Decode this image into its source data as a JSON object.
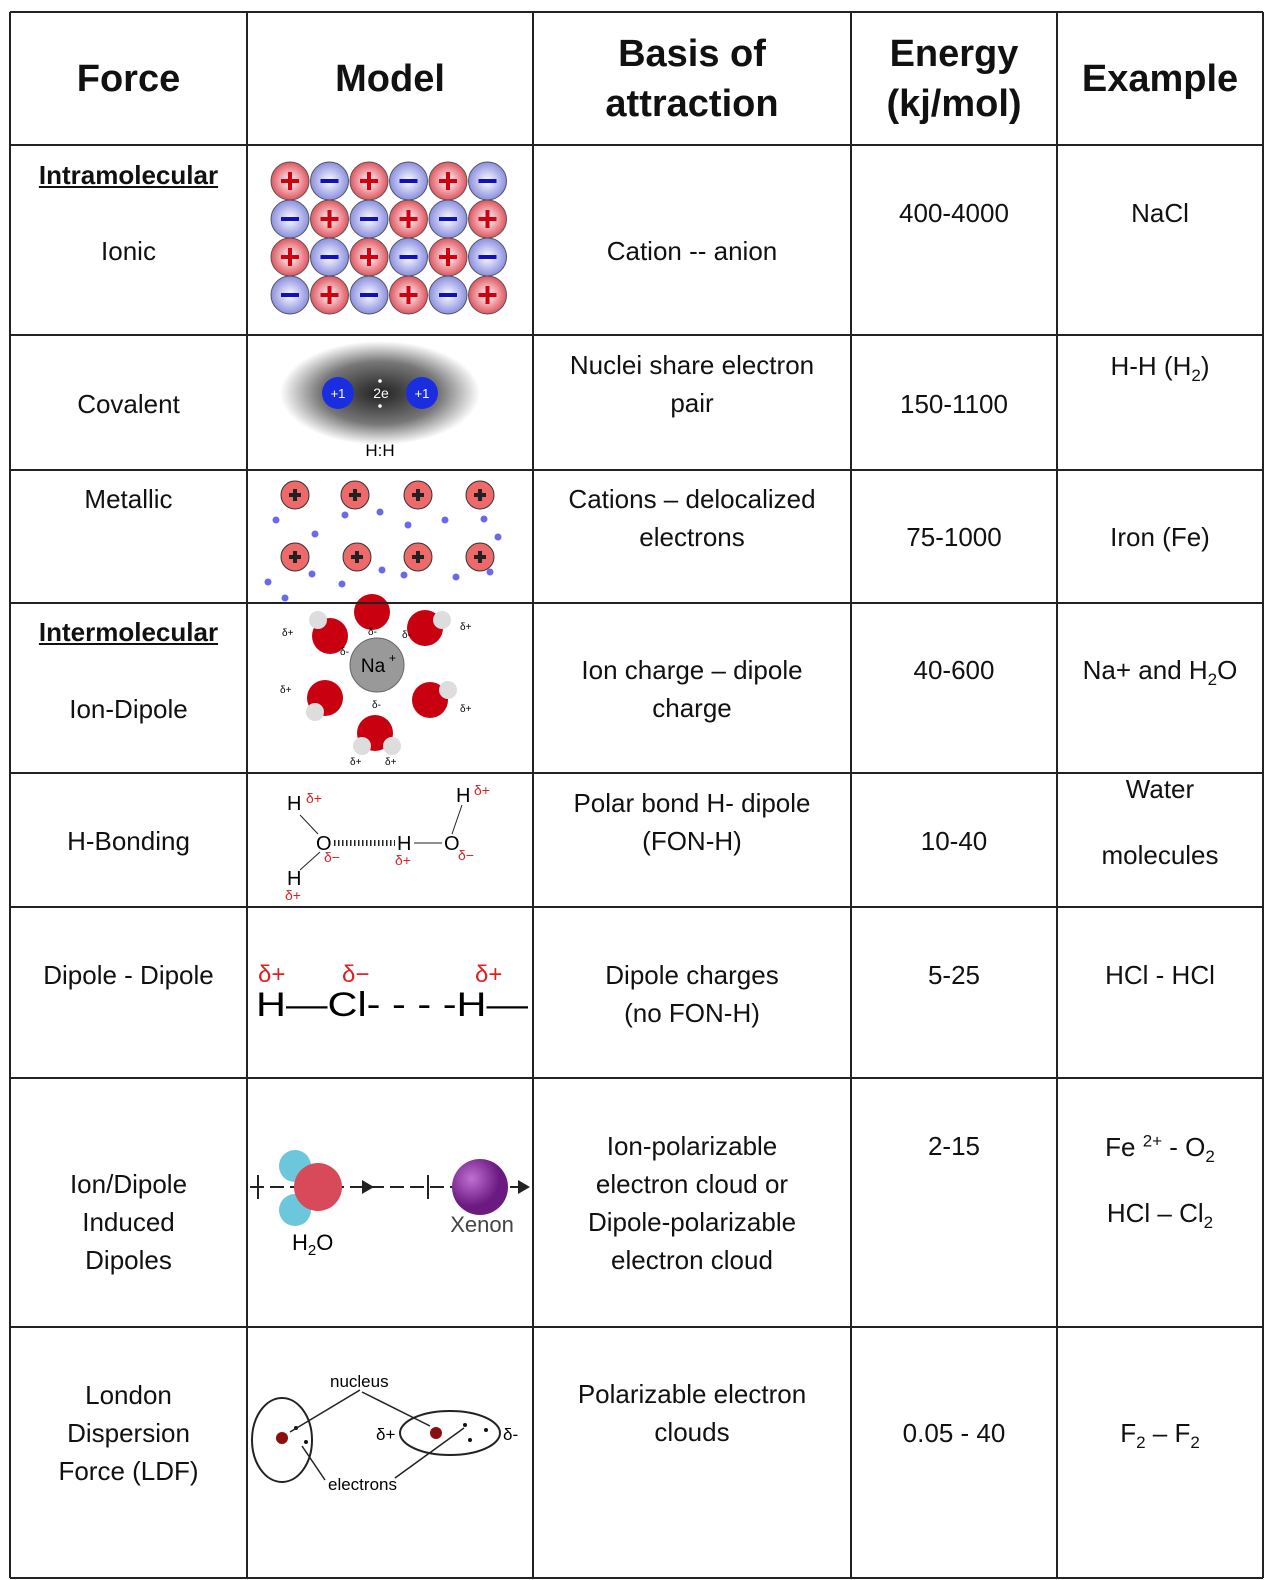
{
  "table": {
    "headers": [
      [
        "Force"
      ],
      [
        "Model"
      ],
      [
        "Basis of",
        "attraction"
      ],
      [
        "Energy",
        "(kj/mol)"
      ],
      [
        "Example"
      ]
    ],
    "rows": [
      {
        "section": "Intramolecular",
        "force": [
          "Ionic"
        ],
        "basis": [
          "Cation -- anion"
        ],
        "energy": "400-4000",
        "example": [
          [
            {
              "text": "NaCl"
            }
          ]
        ]
      },
      {
        "force": [
          "Covalent"
        ],
        "basis": [
          "Nuclei share electron",
          "pair"
        ],
        "energy": "150-1100",
        "example": [
          [
            {
              "text": "H-H (H"
            },
            {
              "text": "2",
              "sub": true
            },
            {
              "text": ")"
            }
          ]
        ],
        "model": {
          "labels": [
            "+1",
            "2e",
            "H:H"
          ]
        }
      },
      {
        "force": [
          "Metallic"
        ],
        "basis": [
          "Cations – delocalized",
          "electrons"
        ],
        "energy": "75-1000",
        "example": [
          [
            {
              "text": "Iron (Fe)"
            }
          ]
        ]
      },
      {
        "section": "Intermolecular",
        "force": [
          "Ion-Dipole"
        ],
        "basis": [
          "Ion charge – dipole",
          "charge"
        ],
        "energy": "40-600",
        "example": [
          [
            {
              "text": "Na+ and H"
            },
            {
              "text": "2",
              "sub": true
            },
            {
              "text": "O"
            }
          ]
        ],
        "model": {
          "labels": [
            "Na",
            "+",
            "δ+",
            "δ-"
          ]
        }
      },
      {
        "force": [
          "H-Bonding"
        ],
        "basis": [
          "Polar bond H- dipole",
          "(FON-H)"
        ],
        "energy": "10-40",
        "example": [
          [
            {
              "text": "Water"
            }
          ],
          [
            {
              "text": "molecules"
            }
          ]
        ],
        "model": {
          "labels": [
            "H",
            "O",
            "δ+",
            "δ−"
          ]
        }
      },
      {
        "force": [
          "Dipole - Dipole"
        ],
        "basis": [
          "Dipole charges",
          "(no FON-H)"
        ],
        "energy": "5-25",
        "example": [
          [
            {
              "text": "HCl - HCl"
            }
          ]
        ],
        "model": {
          "labels": [
            "δ+",
            "δ−",
            "H—Cl- - - -H—"
          ]
        }
      },
      {
        "force": [
          "Ion/Dipole",
          "Induced",
          "Dipoles"
        ],
        "basis": [
          "Ion-polarizable",
          "electron cloud or",
          "Dipole-polarizable",
          "electron cloud"
        ],
        "energy": "2-15",
        "example": [
          [
            {
              "text": "Fe "
            },
            {
              "text": "2+",
              "sup": true
            },
            {
              "text": " - O"
            },
            {
              "text": "2",
              "sub": true
            }
          ],
          [
            {
              "text": "HCl – Cl"
            },
            {
              "text": "2",
              "sub": true
            }
          ]
        ],
        "model": {
          "labels": [
            "H",
            "2",
            "O",
            "Xenon"
          ]
        }
      },
      {
        "force": [
          "London",
          "Dispersion",
          "Force (LDF)"
        ],
        "basis": [
          "Polarizable electron",
          "clouds"
        ],
        "energy": "0.05 - 40",
        "example": [
          [
            {
              "text": "F"
            },
            {
              "text": "2",
              "sub": true
            },
            {
              "text": " – F"
            },
            {
              "text": "2",
              "sub": true
            }
          ]
        ],
        "model": {
          "labels": [
            "nucleus",
            "electrons",
            "δ+",
            "δ-"
          ]
        }
      }
    ]
  }
}
